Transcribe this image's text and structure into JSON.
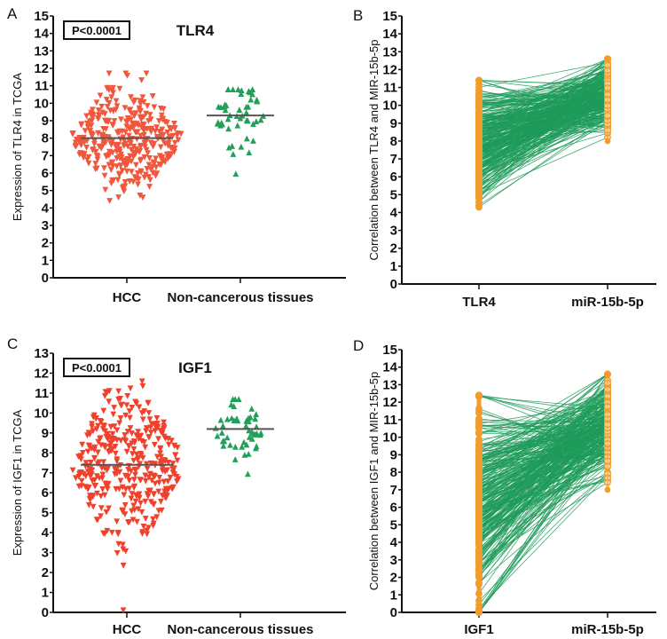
{
  "chart_data": [
    {
      "panel": "A",
      "type": "scatter",
      "title": "TLR4",
      "annotation": "P<0.0001",
      "ylabel": "Expression of  TLR4 in TCGA",
      "ylim": [
        0,
        15
      ],
      "yticks": [
        0,
        1,
        2,
        3,
        4,
        5,
        6,
        7,
        8,
        9,
        10,
        11,
        12,
        13,
        14,
        15
      ],
      "categories": [
        "HCC",
        "Non-cancerous tissues"
      ],
      "series": [
        {
          "category": "HCC",
          "color": "#f0573c",
          "marker": "triangle-down",
          "n": 371,
          "mean": 8.0,
          "min": 4.4,
          "max": 11.7
        },
        {
          "category": "Non-cancerous tissues",
          "color": "#22a05a",
          "marker": "triangle-up",
          "n": 50,
          "mean": 9.3,
          "min": 5.6,
          "max": 10.8
        }
      ]
    },
    {
      "panel": "B",
      "type": "line",
      "ylabel": "Correlation between TLR4 and MIR-15b-5p",
      "ylim": [
        0,
        15
      ],
      "yticks": [
        0,
        1,
        2,
        3,
        4,
        5,
        6,
        7,
        8,
        9,
        10,
        11,
        12,
        13,
        14,
        15
      ],
      "categories": [
        "TLR4",
        "miR-15b-5p"
      ],
      "series": [
        {
          "name": "TLR4",
          "range": [
            4.3,
            11.4
          ],
          "color": "#f39b2c"
        },
        {
          "name": "miR-15b-5p",
          "range": [
            8.0,
            12.6
          ],
          "color": "#f39b2c"
        }
      ],
      "line_color": "#1f9b5a"
    },
    {
      "panel": "C",
      "type": "scatter",
      "title": "IGF1",
      "annotation": "P<0.0001",
      "ylabel": "Expression of IGF1 in TCGA",
      "ylim": [
        0,
        13
      ],
      "yticks": [
        0,
        1,
        2,
        3,
        4,
        5,
        6,
        7,
        8,
        9,
        10,
        11,
        12,
        13
      ],
      "categories": [
        "HCC",
        "Non-cancerous tissues"
      ],
      "series": [
        {
          "category": "HCC",
          "color": "#f0412c",
          "marker": "triangle-down",
          "n": 371,
          "mean": 7.4,
          "min": 2.3,
          "max": 11.6,
          "outlier": 0.1
        },
        {
          "category": "Non-cancerous tissues",
          "color": "#22a05a",
          "marker": "triangle-up",
          "n": 50,
          "mean": 9.2,
          "min": 6.8,
          "max": 10.7
        }
      ]
    },
    {
      "panel": "D",
      "type": "line",
      "ylabel": "Correlation between IGF1 and MIR-15b-5p",
      "ylim": [
        0,
        15
      ],
      "yticks": [
        0,
        1,
        2,
        3,
        4,
        5,
        6,
        7,
        8,
        9,
        10,
        11,
        12,
        13,
        14,
        15
      ],
      "categories": [
        "IGF1",
        "miR-15b-5p"
      ],
      "series": [
        {
          "name": "IGF1",
          "range": [
            0.0,
            12.4
          ],
          "color": "#f39b2c"
        },
        {
          "name": "miR-15b-5p",
          "range": [
            7.0,
            13.6
          ],
          "color": "#f39b2c"
        }
      ],
      "line_color": "#1f9b5a"
    }
  ],
  "panels": {
    "a": {
      "letter": "A"
    },
    "b": {
      "letter": "B"
    },
    "c": {
      "letter": "C"
    },
    "d": {
      "letter": "D"
    }
  }
}
